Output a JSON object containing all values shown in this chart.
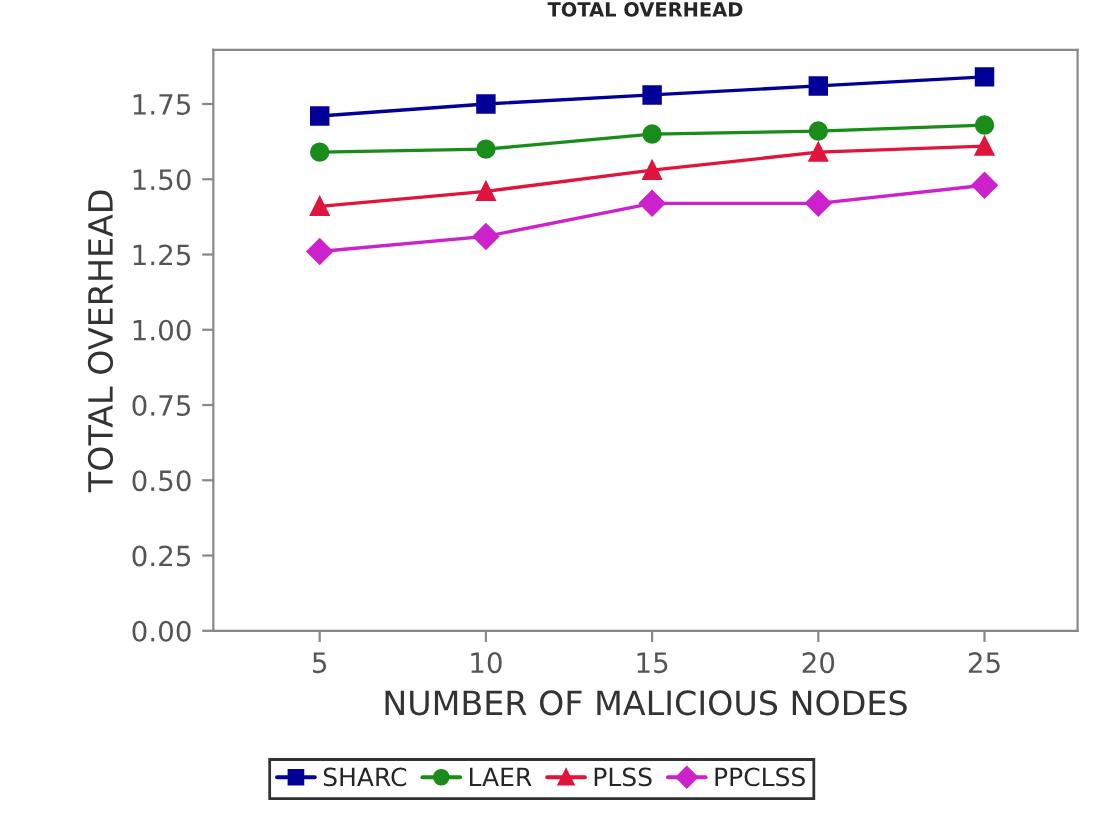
{
  "chart_data": {
    "type": "line",
    "title": "TOTAL OVERHEAD",
    "xlabel": "NUMBER OF MALICIOUS NODES",
    "ylabel": "TOTAL OVERHEAD",
    "x": [
      5,
      10,
      15,
      20,
      25
    ],
    "series": [
      {
        "name": "SHARC",
        "color": "#000099",
        "marker": "square",
        "values": [
          1.71,
          1.75,
          1.78,
          1.81,
          1.84
        ]
      },
      {
        "name": "LAER",
        "color": "#1a8c1a",
        "marker": "circle",
        "values": [
          1.59,
          1.6,
          1.65,
          1.66,
          1.68
        ]
      },
      {
        "name": "PLSS",
        "color": "#e0143c",
        "marker": "triangle",
        "values": [
          1.41,
          1.46,
          1.53,
          1.59,
          1.61
        ]
      },
      {
        "name": "PPCLSS",
        "color": "#cc22cc",
        "marker": "diamond",
        "values": [
          1.26,
          1.31,
          1.42,
          1.42,
          1.48
        ]
      }
    ],
    "xlim": [
      1.8,
      27.8
    ],
    "xticks": [
      5,
      10,
      15,
      20,
      25
    ],
    "ylim": [
      0,
      1.93
    ],
    "yticks": [
      {
        "value": 0,
        "label": "0.00"
      },
      {
        "value": 0.25,
        "label": "0.25"
      },
      {
        "value": 0.5,
        "label": "0.50"
      },
      {
        "value": 0.75,
        "label": "0.75"
      },
      {
        "value": 1,
        "label": "1.00"
      },
      {
        "value": 1.25,
        "label": "1.25"
      },
      {
        "value": 1.5,
        "label": "1.50"
      },
      {
        "value": 1.75,
        "label": "1.75"
      }
    ],
    "grid": false,
    "legend": "bottom",
    "line_style": "solid"
  }
}
